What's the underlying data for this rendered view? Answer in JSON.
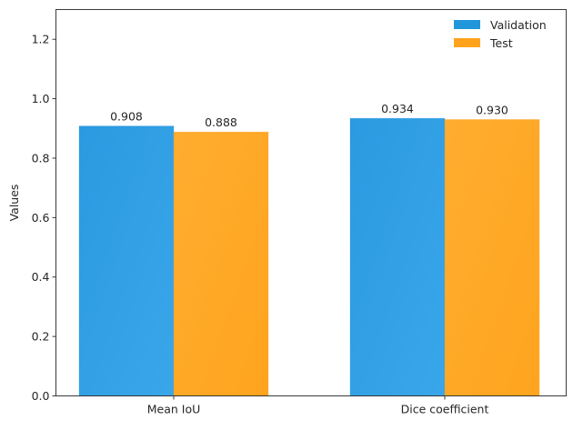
{
  "chart_data": {
    "type": "bar",
    "title": "",
    "xlabel": "",
    "ylabel": "Values",
    "ylim": [
      0,
      1.3
    ],
    "yticks": [
      "0.0",
      "0.2",
      "0.4",
      "0.6",
      "0.8",
      "1.0",
      "1.2"
    ],
    "categories": [
      "Mean IoU",
      "Dice coefficient"
    ],
    "series": [
      {
        "name": "Validation",
        "values": [
          0.908,
          0.934
        ],
        "labels": [
          "0.908",
          "0.934"
        ],
        "color": "#2196db"
      },
      {
        "name": "Test",
        "values": [
          0.888,
          0.93
        ],
        "labels": [
          "0.888",
          "0.930"
        ],
        "color": "#ffa21c"
      }
    ],
    "legend_position": "top-right",
    "grid": false
  }
}
